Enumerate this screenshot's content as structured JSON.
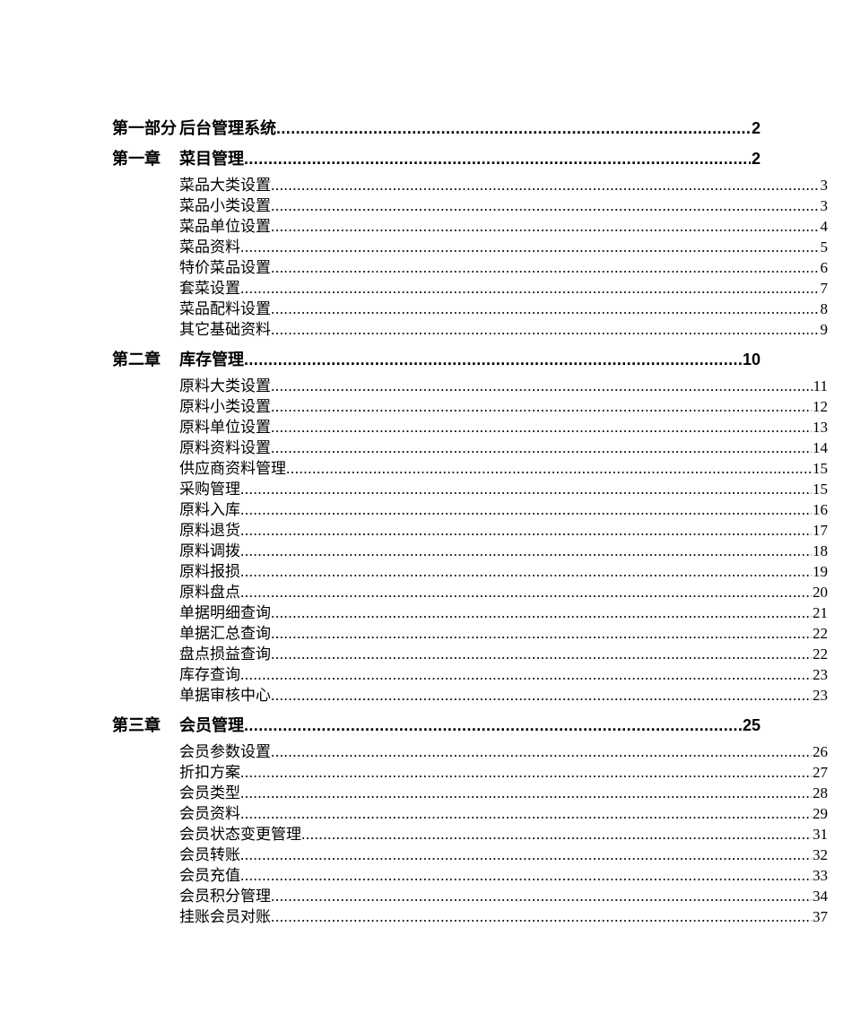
{
  "document": {
    "background": "#ffffff",
    "text_color": "#000000",
    "type": "table-of-contents"
  },
  "toc": {
    "entries": [
      {
        "level": 1,
        "num": "第一部分",
        "title": "后台管理系统",
        "page": "2"
      },
      {
        "level": 1,
        "num": "第一章",
        "title": "菜目管理",
        "page": "2"
      },
      {
        "level": 2,
        "num": "",
        "title": "菜品大类设置",
        "page": "3"
      },
      {
        "level": 2,
        "num": "",
        "title": "菜品小类设置",
        "page": "3"
      },
      {
        "level": 2,
        "num": "",
        "title": "菜品单位设置",
        "page": "4"
      },
      {
        "level": 2,
        "num": "",
        "title": "菜品资料",
        "page": "5"
      },
      {
        "level": 2,
        "num": "",
        "title": "特价菜品设置",
        "page": "6"
      },
      {
        "level": 2,
        "num": "",
        "title": "套菜设置",
        "page": "7"
      },
      {
        "level": 2,
        "num": "",
        "title": "菜品配料设置",
        "page": "8"
      },
      {
        "level": 2,
        "num": "",
        "title": "其它基础资料",
        "page": "9"
      },
      {
        "level": 1,
        "num": "第二章",
        "title": "库存管理",
        "page": "10"
      },
      {
        "level": 2,
        "num": "",
        "title": "原料大类设置",
        "page": "11"
      },
      {
        "level": 2,
        "num": "",
        "title": "原料小类设置",
        "page": "12"
      },
      {
        "level": 2,
        "num": "",
        "title": "原料单位设置",
        "page": "13"
      },
      {
        "level": 2,
        "num": "",
        "title": "原料资料设置",
        "page": "14"
      },
      {
        "level": 2,
        "num": "",
        "title": "供应商资料管理",
        "page": "15"
      },
      {
        "level": 2,
        "num": "",
        "title": "采购管理",
        "page": "15"
      },
      {
        "level": 2,
        "num": "",
        "title": "原料入库",
        "page": "16"
      },
      {
        "level": 2,
        "num": "",
        "title": "原料退货",
        "page": "17"
      },
      {
        "level": 2,
        "num": "",
        "title": "原料调拨",
        "page": "18"
      },
      {
        "level": 2,
        "num": "",
        "title": "原料报损",
        "page": "19"
      },
      {
        "level": 2,
        "num": "",
        "title": "原料盘点",
        "page": "20"
      },
      {
        "level": 2,
        "num": "",
        "title": "单据明细查询",
        "page": "21"
      },
      {
        "level": 2,
        "num": "",
        "title": "单据汇总查询",
        "page": "22"
      },
      {
        "level": 2,
        "num": "",
        "title": "盘点损益查询",
        "page": "22"
      },
      {
        "level": 2,
        "num": "",
        "title": "库存查询",
        "page": "23"
      },
      {
        "level": 2,
        "num": "",
        "title": "单据审核中心",
        "page": "23"
      },
      {
        "level": 1,
        "num": "第三章",
        "title": "会员管理",
        "page": "25"
      },
      {
        "level": 2,
        "num": "",
        "title": "会员参数设置",
        "page": "26"
      },
      {
        "level": 2,
        "num": "",
        "title": "折扣方案",
        "page": "27"
      },
      {
        "level": 2,
        "num": "",
        "title": "会员类型",
        "page": "28"
      },
      {
        "level": 2,
        "num": "",
        "title": "会员资料",
        "page": "29"
      },
      {
        "level": 2,
        "num": "",
        "title": "会员状态变更管理",
        "page": "31"
      },
      {
        "level": 2,
        "num": "",
        "title": "会员转账",
        "page": "32"
      },
      {
        "level": 2,
        "num": "",
        "title": "会员充值",
        "page": "33"
      },
      {
        "level": 2,
        "num": "",
        "title": "会员积分管理",
        "page": "34"
      },
      {
        "level": 2,
        "num": "",
        "title": "挂账会员对账",
        "page": "37"
      }
    ]
  }
}
